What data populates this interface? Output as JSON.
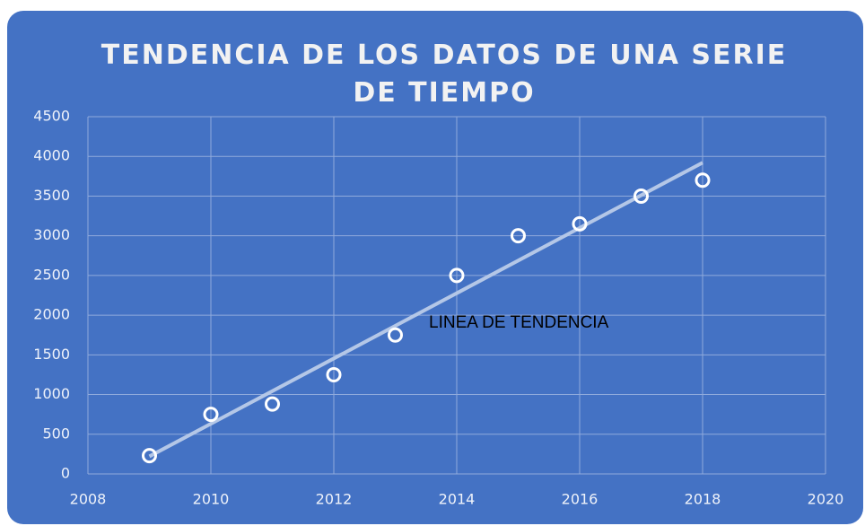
{
  "chart_data": {
    "type": "scatter",
    "title": "TENDENCIA DE LOS DATOS DE UNA SERIE DE TIEMPO",
    "x": [
      2009,
      2010,
      2011,
      2012,
      2013,
      2014,
      2015,
      2016,
      2017,
      2018
    ],
    "values": [
      230,
      750,
      880,
      1250,
      1750,
      2500,
      3000,
      3150,
      3500,
      3700
    ],
    "color": "#ffffff",
    "trendline": {
      "x": [
        2009,
        2018
      ],
      "values": [
        221,
        3921
      ],
      "color": "#b4c7e7"
    },
    "annotation": "LINEA DE TENDENCIA",
    "xlim": [
      2008,
      2020
    ],
    "xticks": [
      2008,
      2010,
      2012,
      2014,
      2016,
      2018,
      2020
    ],
    "ylim": [
      0,
      4500
    ],
    "yticks": [
      0,
      500,
      1000,
      1500,
      2000,
      2500,
      3000,
      3500,
      4000,
      4500
    ],
    "grid": true
  }
}
